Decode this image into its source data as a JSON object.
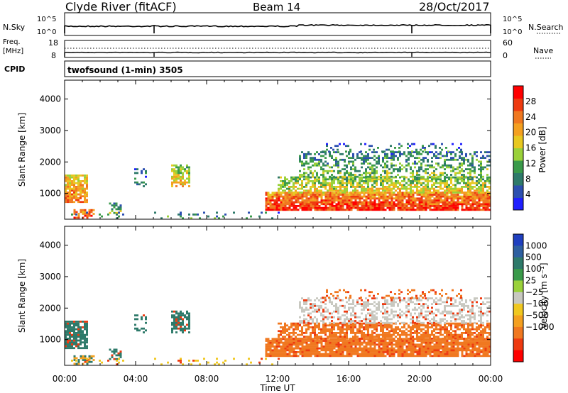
{
  "header": {
    "station": "Clyde River (fitACF)",
    "beam": "Beam 14",
    "date": "28/Oct/2017"
  },
  "strips": {
    "nsky_label": "N.Sky",
    "nsearch_label": "N.Search",
    "nsky_ticks": [
      "10^5",
      "10^0"
    ],
    "nsearch_ticks": [
      "10^5",
      "10^0"
    ],
    "freq_label": "Freq.",
    "freq_unit": "[MHz]",
    "freq_ticks": [
      "18",
      "8"
    ],
    "nave_label": "Nave",
    "nave_ticks": [
      "60",
      "0"
    ],
    "cpid_label": "CPID",
    "cpid_value": "twofsound (1-min) 3505"
  },
  "time_axis": {
    "label": "Time UT",
    "ticks": [
      "00:00",
      "04:00",
      "08:00",
      "12:00",
      "16:00",
      "20:00",
      "00:00"
    ]
  },
  "chart_data": [
    {
      "type": "heatmap",
      "panel": "power",
      "ylabel": "Slant Range [km]",
      "xlabel": "Time UT",
      "x_ticks": [
        "00:00",
        "04:00",
        "08:00",
        "12:00",
        "16:00",
        "20:00",
        "00:00"
      ],
      "xlim_hours": [
        0,
        24
      ],
      "ylim": [
        180,
        4600
      ],
      "y_ticks": [
        1000,
        2000,
        3000,
        4000
      ],
      "colorbar": {
        "label": "Power [dB]",
        "ticks": [
          4,
          8,
          12,
          16,
          20,
          24,
          28
        ],
        "range": [
          0,
          32
        ],
        "colors": [
          "#1f1fff",
          "#2c4fb0",
          "#2e7a6a",
          "#3a9a4a",
          "#9ad13a",
          "#e8c820",
          "#f4a020",
          "#f07820",
          "#ee3a10",
          "#ff0000"
        ]
      },
      "grid": false
    },
    {
      "type": "heatmap",
      "panel": "velocity",
      "ylabel": "Slant Range [km]",
      "xlabel": "Time UT",
      "x_ticks": [
        "00:00",
        "04:00",
        "08:00",
        "12:00",
        "16:00",
        "20:00",
        "00:00"
      ],
      "xlim_hours": [
        0,
        24
      ],
      "ylim": [
        180,
        4600
      ],
      "y_ticks": [
        1000,
        2000,
        3000,
        4000
      ],
      "colorbar": {
        "label": "Velocity [m s⁻¹]",
        "ticks": [
          "1000",
          "500",
          "100",
          "25",
          "−25",
          "−100",
          "−500",
          "−1000"
        ],
        "colors": [
          "#1f3fbf",
          "#2e5fa0",
          "#2e7a6a",
          "#3a9a4a",
          "#9ad13a",
          "#c8c8c0",
          "#f0c820",
          "#f4a020",
          "#f07820",
          "#ee3a10",
          "#ff0000"
        ]
      },
      "grid": false
    }
  ]
}
